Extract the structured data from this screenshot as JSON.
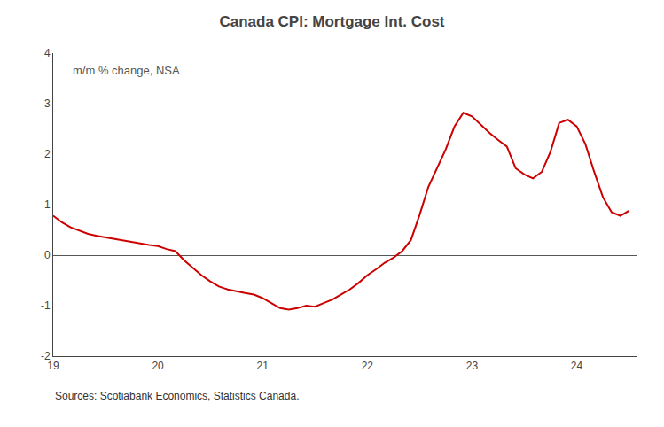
{
  "chart_data": {
    "type": "line",
    "title": "Canada CPI: Mortgage Int. Cost",
    "ylabel": "m/m % change, NSA",
    "source": "Sources: Scotiabank Economics, Statistics Canada.",
    "color": "#cc0000",
    "grid": false,
    "xlim": [
      19.0,
      24.58
    ],
    "xticks": [
      19,
      20,
      21,
      22,
      23,
      24
    ],
    "ylim": [
      -2,
      4
    ],
    "yticks": [
      -2,
      -1,
      0,
      1,
      2,
      3,
      4
    ],
    "x": [
      19.0,
      19.083,
      19.167,
      19.25,
      19.333,
      19.417,
      19.5,
      19.583,
      19.667,
      19.75,
      19.833,
      19.917,
      20.0,
      20.083,
      20.167,
      20.25,
      20.333,
      20.417,
      20.5,
      20.583,
      20.667,
      20.75,
      20.833,
      20.917,
      21.0,
      21.083,
      21.167,
      21.25,
      21.333,
      21.417,
      21.5,
      21.583,
      21.667,
      21.75,
      21.833,
      21.917,
      22.0,
      22.083,
      22.167,
      22.25,
      22.333,
      22.417,
      22.5,
      22.583,
      22.667,
      22.75,
      22.833,
      22.917,
      23.0,
      23.083,
      23.167,
      23.25,
      23.333,
      23.417,
      23.5,
      23.583,
      23.667,
      23.75,
      23.833,
      23.917,
      24.0,
      24.083,
      24.167,
      24.25,
      24.333,
      24.417,
      24.5
    ],
    "values": [
      0.78,
      0.65,
      0.55,
      0.48,
      0.42,
      0.38,
      0.35,
      0.32,
      0.28,
      0.25,
      0.23,
      0.2,
      0.18,
      0.12,
      0.08,
      -0.1,
      -0.25,
      -0.4,
      -0.52,
      -0.62,
      -0.68,
      -0.72,
      -0.75,
      -0.78,
      -0.85,
      -0.95,
      -1.05,
      -1.08,
      -1.05,
      -1.0,
      -1.02,
      -0.95,
      -0.88,
      -0.78,
      -0.68,
      -0.55,
      -0.4,
      -0.28,
      -0.15,
      -0.05,
      0.08,
      0.3,
      0.8,
      1.35,
      1.72,
      2.1,
      2.55,
      2.82,
      2.75,
      2.58,
      2.42,
      2.28,
      2.15,
      1.72,
      1.6,
      1.52,
      1.65,
      2.05,
      2.62,
      2.68,
      2.55,
      2.2,
      1.65,
      1.15,
      0.85,
      0.78,
      0.88
    ]
  }
}
